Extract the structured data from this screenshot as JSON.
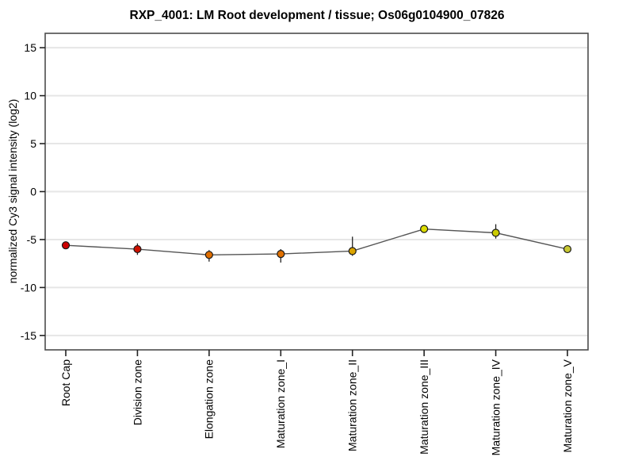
{
  "page": {
    "background": "#ffffff"
  },
  "chart_data": {
    "type": "line",
    "title": "RXP_4001: LM Root development / tissue; Os06g0104900_07826",
    "xlabel": "",
    "ylabel": "normalized Cy3 signal intensity (log2)",
    "categories": [
      "Root Cap",
      "Division zone",
      "Elongation zone",
      "Maturation zone_I",
      "Maturation zone_II",
      "Maturation zone_III",
      "Maturation zone_IV",
      "Maturation zone_V"
    ],
    "series": [
      {
        "name": "normalized Cy3 signal intensity (log2)",
        "values": [
          -5.6,
          -6.0,
          -6.6,
          -6.5,
          -6.2,
          -3.9,
          -4.3,
          -6.0
        ],
        "error_high": [
          -5.2,
          -5.4,
          -6.1,
          -6.0,
          -4.7,
          -3.6,
          -3.4,
          -5.7
        ],
        "error_low": [
          -6.0,
          -6.6,
          -7.3,
          -7.4,
          -6.7,
          -4.3,
          -4.9,
          -6.4
        ],
        "point_colors": [
          "#cc0000",
          "#cc1100",
          "#e06e00",
          "#e07000",
          "#dba400",
          "#dcdc00",
          "#cbcb00",
          "#c8c832"
        ]
      }
    ],
    "yticks": [
      15,
      10,
      5,
      0,
      -5,
      -10,
      -15
    ],
    "ylim": [
      -16.5,
      16.5
    ],
    "grid": "horizontal",
    "legend": "none",
    "colors": {
      "line": "#555555",
      "error_bar": "#222222",
      "marker_outline": "#1a1a1a",
      "grid_line": "#e6e6e6",
      "plot_border": "#4d4d4d",
      "tick_mark": "#222222",
      "text": "#000000"
    }
  }
}
